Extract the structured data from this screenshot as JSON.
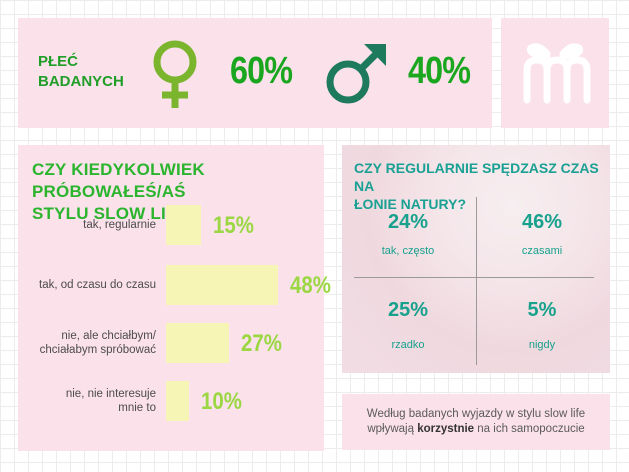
{
  "gender": {
    "label_line1": "PŁEĆ",
    "label_line2": "BADANYCH",
    "female_icon": "female-symbol-icon",
    "male_icon": "male-symbol-icon",
    "female_pct": "60%",
    "male_pct": "40%",
    "female_color": "#7bb52e",
    "male_color": "#1e7a5c"
  },
  "logo": {
    "icon": "gift-logo-icon"
  },
  "survey": {
    "title_line1": "CZY KIEDYKOLWIEK PRÓBOWAŁEŚ/AŚ",
    "title_line2": "STYLU SLOW LIFE?",
    "rows": [
      {
        "label_line1": "tak, regularnie",
        "label_line2": "",
        "value": "15%"
      },
      {
        "label_line1": "tak, od czasu do czasu",
        "label_line2": "",
        "value": "48%"
      },
      {
        "label_line1": "nie, ale chciałbym/",
        "label_line2": "chciałabym spróbować",
        "value": "27%"
      },
      {
        "label_line1": "nie, nie interesuje",
        "label_line2": "mnie to",
        "value": "10%"
      }
    ]
  },
  "nature": {
    "title_line1": "CZY REGULARNIE SPĘDZASZ CZAS NA",
    "title_line2": "ŁONIE NATURY?",
    "cells": [
      {
        "pct": "24%",
        "label": "tak, często"
      },
      {
        "pct": "46%",
        "label": "czasami"
      },
      {
        "pct": "25%",
        "label": "rzadko"
      },
      {
        "pct": "5%",
        "label": "nigdy"
      }
    ]
  },
  "note": {
    "text_before": "Według badanych wyjazdy w stylu slow life wpływają",
    "text_bold": "korzystnie",
    "text_after": "na ich samopoczucie"
  },
  "chart_data": [
    {
      "type": "bar",
      "title": "CZY KIEDYKOLWIEK PRÓBOWAŁEŚ/AŚ STYLU SLOW LIFE?",
      "categories": [
        "tak, regularnie",
        "tak, od czasu do czasu",
        "nie, ale chciałbym/ chciałabym spróbować",
        "nie, nie interesuje mnie to"
      ],
      "values": [
        15,
        48,
        27,
        10
      ],
      "orientation": "horizontal",
      "bar_color": "#f6f5b5"
    },
    {
      "type": "table",
      "title": "CZY REGULARNIE SPĘDZASZ CZAS NA ŁONIE NATURY?",
      "categories": [
        "tak, często",
        "czasami",
        "rzadko",
        "nigdy"
      ],
      "values": [
        24,
        46,
        25,
        5
      ]
    },
    {
      "type": "table",
      "title": "PŁEĆ BADANYCH",
      "categories": [
        "female",
        "male"
      ],
      "values": [
        60,
        40
      ]
    }
  ]
}
